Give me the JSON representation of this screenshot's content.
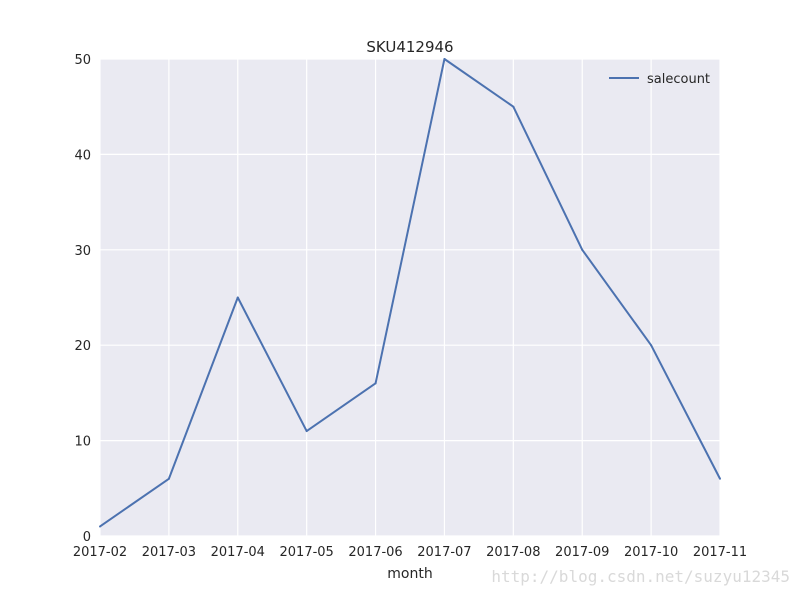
{
  "chart_data": {
    "type": "line",
    "title": "SKU412946",
    "xlabel": "month",
    "ylabel": "",
    "categories": [
      "2017-02",
      "2017-03",
      "2017-04",
      "2017-05",
      "2017-06",
      "2017-07",
      "2017-08",
      "2017-09",
      "2017-10",
      "2017-11"
    ],
    "series": [
      {
        "name": "salecount",
        "values": [
          1,
          6,
          25,
          11,
          16,
          50,
          45,
          30,
          20,
          6
        ],
        "color": "#4c72b0"
      }
    ],
    "ylim": [
      0,
      50
    ],
    "yticks": [
      "0",
      "10",
      "20",
      "30",
      "40",
      "50"
    ],
    "grid": true,
    "legend_position": "top-right",
    "background_color": "#eaeaf2",
    "grid_color": "#ffffff"
  },
  "watermark": "http://blog.csdn.net/suzyu12345"
}
